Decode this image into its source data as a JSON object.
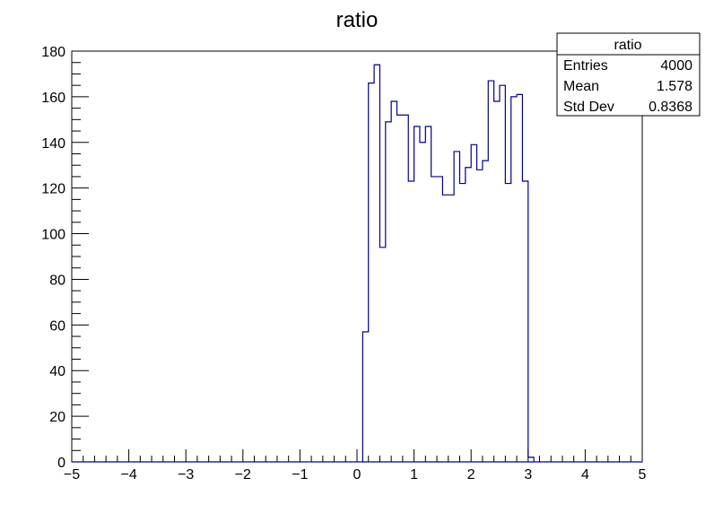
{
  "chart_data": {
    "type": "histogram",
    "title": "ratio",
    "xlabel": "",
    "ylabel": "",
    "xlim": [
      -5,
      5
    ],
    "ylim": [
      0,
      180
    ],
    "bin_width": 0.1,
    "bins_start": 0.1,
    "values": [
      57,
      166,
      174,
      94,
      149,
      158,
      152,
      152,
      123,
      147,
      140,
      147,
      125,
      125,
      117,
      117,
      136,
      122,
      129,
      139,
      128,
      132,
      167,
      158,
      165,
      122,
      160,
      161,
      123,
      2
    ],
    "x_ticks": [
      -5,
      -4,
      -3,
      -2,
      -1,
      0,
      1,
      2,
      3,
      4,
      5
    ],
    "x_tick_labels": [
      "−5",
      "−4",
      "−3",
      "−2",
      "−1",
      "0",
      "1",
      "2",
      "3",
      "4",
      "5"
    ],
    "y_ticks": [
      0,
      20,
      40,
      60,
      80,
      100,
      120,
      140,
      160,
      180
    ],
    "y_tick_labels": [
      "0",
      "20",
      "40",
      "60",
      "80",
      "100",
      "120",
      "140",
      "160",
      "180"
    ],
    "line_color": "#00008b",
    "grid": false,
    "stats_box": {
      "title": "ratio",
      "rows": [
        {
          "label": "Entries",
          "value": "4000"
        },
        {
          "label": "Mean",
          "value": "1.578"
        },
        {
          "label": "Std Dev",
          "value": "0.8368"
        }
      ],
      "placement": "top-right"
    }
  }
}
